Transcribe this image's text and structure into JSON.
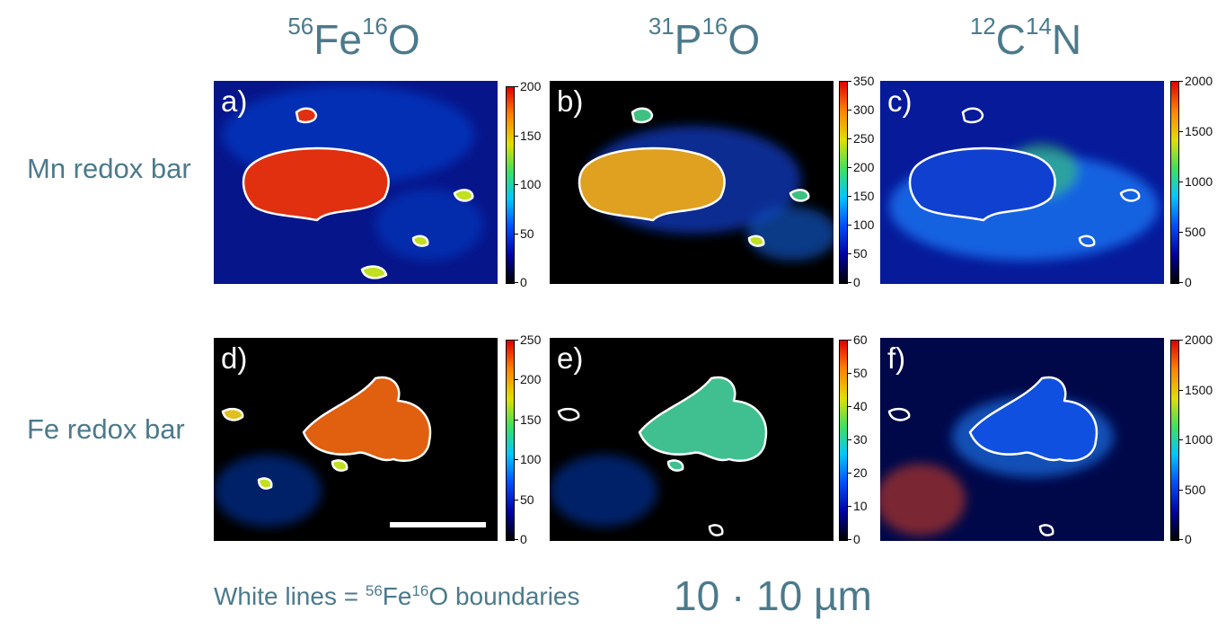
{
  "columns": [
    {
      "mass_a": "56",
      "el_a": "Fe",
      "mass_b": "16",
      "el_b": "O"
    },
    {
      "mass_a": "31",
      "el_a": "P",
      "mass_b": "16",
      "el_b": "O"
    },
    {
      "mass_a": "12",
      "el_a": "C",
      "mass_b": "14",
      "el_b": "N"
    }
  ],
  "rows": [
    "Mn redox bar",
    "Fe redox bar"
  ],
  "panels": [
    {
      "label": "a)",
      "ticks": [
        "200",
        "150",
        "100",
        "50",
        "0"
      ]
    },
    {
      "label": "b)",
      "ticks": [
        "350",
        "300",
        "250",
        "200",
        "150",
        "100",
        "50",
        "0"
      ]
    },
    {
      "label": "c)",
      "ticks": [
        "2000",
        "1500",
        "1000",
        "500",
        "0"
      ]
    },
    {
      "label": "d)",
      "ticks": [
        "250",
        "200",
        "150",
        "100",
        "50",
        "0"
      ]
    },
    {
      "label": "e)",
      "ticks": [
        "60",
        "50",
        "40",
        "30",
        "20",
        "10",
        "0"
      ]
    },
    {
      "label": "f)",
      "ticks": [
        "2000",
        "1500",
        "1000",
        "500",
        "0"
      ]
    }
  ],
  "footer": {
    "note_prefix": "White lines = ",
    "note_mass_a": "56",
    "note_el_a": "Fe",
    "note_mass_b": "16",
    "note_el_b": "O",
    "note_suffix": " boundaries",
    "scale": "10 · 10 µm"
  },
  "colors": {
    "text": "#4b7a8c",
    "colormap": [
      "#000000",
      "#0000a0",
      "#0050ff",
      "#00c8ff",
      "#40e060",
      "#e0e000",
      "#ff8000",
      "#e00000"
    ]
  }
}
